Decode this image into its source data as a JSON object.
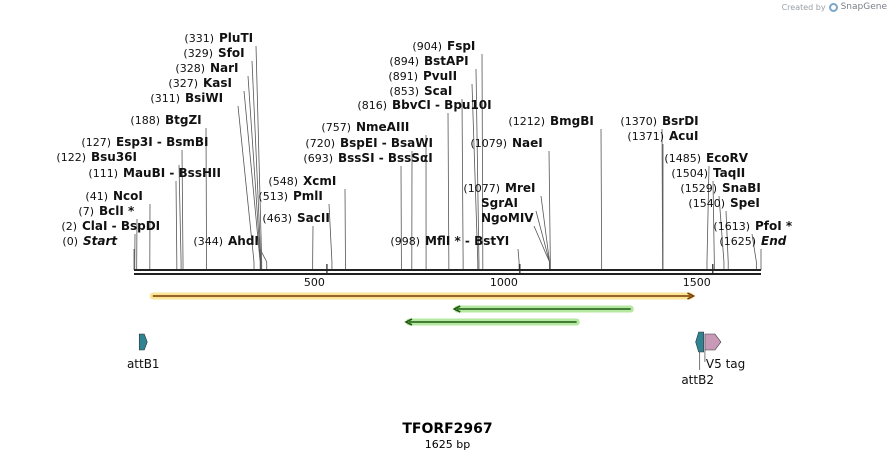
{
  "app": {
    "credit_prefix": "Created by",
    "credit_brand": "SnapGene",
    "logo_icon": "snapgene-logo-icon"
  },
  "map": {
    "name": "TFORF2967",
    "length_label": "1625 bp",
    "length": 1625,
    "ticks": [
      {
        "value": 500,
        "label": "500"
      },
      {
        "value": 1000,
        "label": "1000"
      },
      {
        "value": 1500,
        "label": "1500"
      }
    ]
  },
  "sites": [
    {
      "pos": 0,
      "num": "(0)",
      "name": "Start",
      "italic": true
    },
    {
      "pos": 2,
      "num": "(2)",
      "name": "ClaI  -  BspDI"
    },
    {
      "pos": 7,
      "num": "(7)",
      "name": "BclI *"
    },
    {
      "pos": 41,
      "num": "(41)",
      "name": "NcoI"
    },
    {
      "pos": 111,
      "num": "(111)",
      "name": "MauBI  -  BssHII"
    },
    {
      "pos": 122,
      "num": "(122)",
      "name": "Bsu36I"
    },
    {
      "pos": 127,
      "num": "(127)",
      "name": "Esp3I  -  BsmBI"
    },
    {
      "pos": 188,
      "num": "(188)",
      "name": "BtgZI"
    },
    {
      "pos": 311,
      "num": "(311)",
      "name": "BsiWI"
    },
    {
      "pos": 327,
      "num": "(327)",
      "name": "KasI"
    },
    {
      "pos": 328,
      "num": "(328)",
      "name": "NarI"
    },
    {
      "pos": 329,
      "num": "(329)",
      "name": "SfoI"
    },
    {
      "pos": 331,
      "num": "(331)",
      "name": "PluTI"
    },
    {
      "pos": 344,
      "num": "(344)",
      "name": "AhdI"
    },
    {
      "pos": 463,
      "num": "(463)",
      "name": "SacII"
    },
    {
      "pos": 513,
      "num": "(513)",
      "name": "PmlI"
    },
    {
      "pos": 548,
      "num": "(548)",
      "name": "XcmI"
    },
    {
      "pos": 693,
      "num": "(693)",
      "name": "BssSI  -  BssSαI"
    },
    {
      "pos": 720,
      "num": "(720)",
      "name": "BspEI  -  BsaWI"
    },
    {
      "pos": 757,
      "num": "(757)",
      "name": "NmeAIII"
    },
    {
      "pos": 816,
      "num": "(816)",
      "name": "BbvCI  -  Bpu10I"
    },
    {
      "pos": 853,
      "num": "(853)",
      "name": "ScaI"
    },
    {
      "pos": 891,
      "num": "(891)",
      "name": "PvuII"
    },
    {
      "pos": 894,
      "num": "(894)",
      "name": "BstAPI"
    },
    {
      "pos": 904,
      "num": "(904)",
      "name": "FspI"
    },
    {
      "pos": 998,
      "num": "(998)",
      "name": "MflI *  -  BstYI"
    },
    {
      "pos": 1077,
      "num": "(1077)",
      "name": "MreI"
    },
    {
      "pos": 1077,
      "num": "",
      "name": "SgrAI"
    },
    {
      "pos": 1077,
      "num": "",
      "name": "NgoMIV"
    },
    {
      "pos": 1079,
      "num": "(1079)",
      "name": "NaeI"
    },
    {
      "pos": 1212,
      "num": "(1212)",
      "name": "BmgBI"
    },
    {
      "pos": 1370,
      "num": "(1370)",
      "name": "BsrDI"
    },
    {
      "pos": 1371,
      "num": "(1371)",
      "name": "AcuI"
    },
    {
      "pos": 1485,
      "num": "(1485)",
      "name": "EcoRV"
    },
    {
      "pos": 1504,
      "num": "(1504)",
      "name": "TaqII"
    },
    {
      "pos": 1529,
      "num": "(1529)",
      "name": "SnaBI"
    },
    {
      "pos": 1540,
      "num": "(1540)",
      "name": "SpeI"
    },
    {
      "pos": 1613,
      "num": "(1613)",
      "name": "PfoI *"
    },
    {
      "pos": 1625,
      "num": "(1625)",
      "name": "End",
      "italic": true
    }
  ],
  "features": {
    "orfs": [
      {
        "start": 41,
        "end": 1450,
        "direction": "forward",
        "color": "#f5c518"
      },
      {
        "start": 830,
        "end": 1295,
        "direction": "reverse",
        "color": "#5ccc2f"
      },
      {
        "start": 705,
        "end": 1155,
        "direction": "reverse",
        "color": "#5ccc2f"
      }
    ],
    "elements": [
      {
        "name": "attB1",
        "pos": 24,
        "direction": "forward",
        "color": "#2f8393"
      },
      {
        "name": "attB2",
        "pos": 1466,
        "direction": "reverse",
        "color": "#2f8393"
      },
      {
        "name": "V5 tag",
        "pos": 1490,
        "direction": "forward",
        "color": "#c89ab8"
      }
    ]
  }
}
